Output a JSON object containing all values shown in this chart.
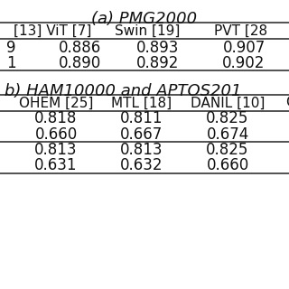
{
  "title_a": "(a) PMG2000",
  "title_b": "b) HAM10000 and APTOS201",
  "table_a_header": [
    "[13] ViT [7]",
    "Swin [19]",
    "PVT [28"
  ],
  "table_a_rows": [
    [
      "9",
      "0.886",
      "0.893",
      "0.907"
    ],
    [
      "1",
      "0.890",
      "0.892",
      "0.902"
    ]
  ],
  "table_b_header": [
    "OHEM [25]",
    "MTL [18]",
    "DANIL [10]",
    "C"
  ],
  "table_b_rows": [
    [
      "0.818",
      "0.811",
      "0.825"
    ],
    [
      "0.660",
      "0.667",
      "0.674"
    ],
    [
      "0.813",
      "0.813",
      "0.825"
    ],
    [
      "0.631",
      "0.632",
      "0.660"
    ]
  ],
  "bg_color": "#ffffff",
  "text_color": "#111111",
  "line_color": "#333333",
  "fs_title": 13,
  "fs_header": 11,
  "fs_data": 12,
  "lw": 1.2
}
